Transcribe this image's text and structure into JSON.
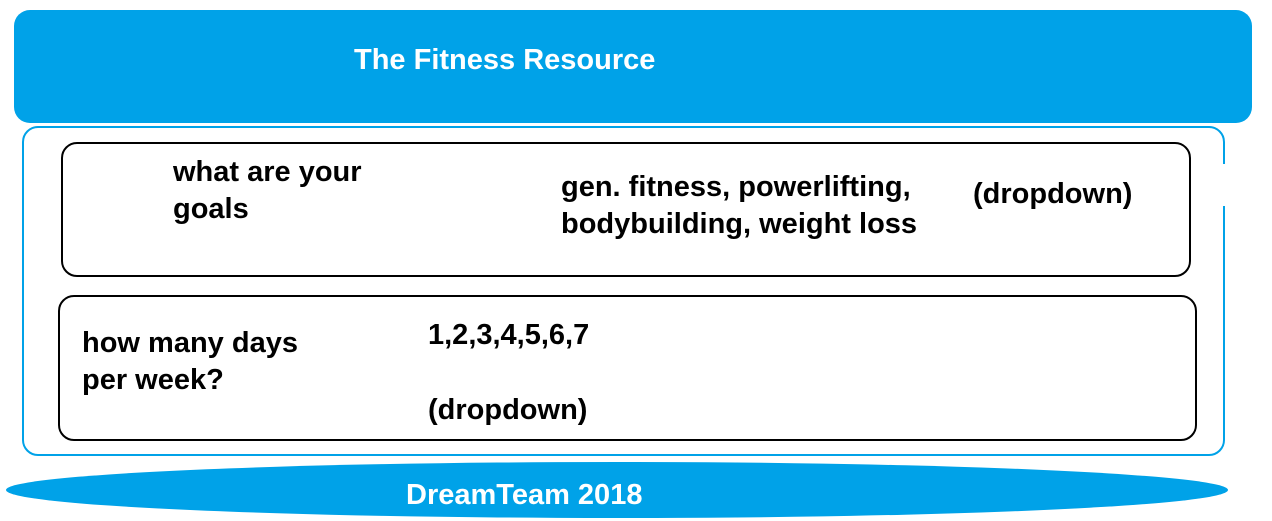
{
  "colors": {
    "brand_blue": "#00a2e8"
  },
  "header": {
    "title": "The Fitness Resource"
  },
  "goals": {
    "question": "what are your\ngoals",
    "options": "gen. fitness, powerlifting,\nbodybuilding, weight loss",
    "control": "(dropdown)"
  },
  "days": {
    "question": "how many days\nper week?",
    "options": "1,2,3,4,5,6,7",
    "control": "(dropdown)"
  },
  "footer": {
    "title": "DreamTeam 2018"
  }
}
